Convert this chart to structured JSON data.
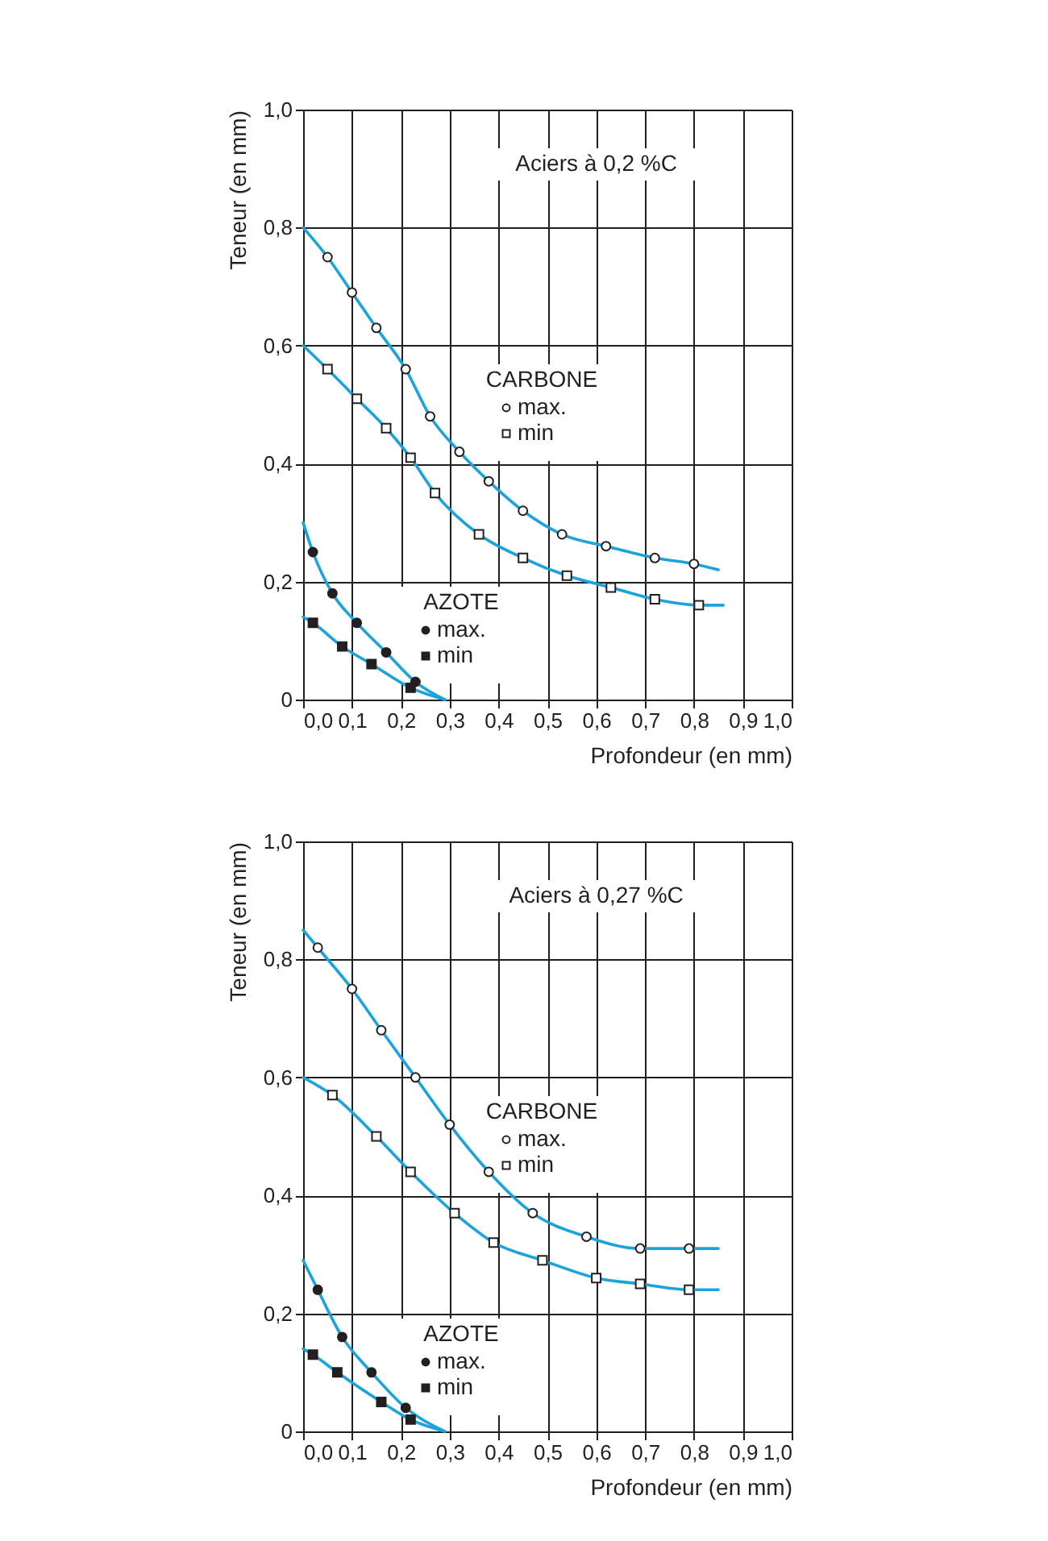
{
  "chart_data": [
    {
      "type": "line",
      "title": "Aciers à 0,2 %C",
      "xlabel": "Profondeur (en mm)",
      "ylabel": "Teneur (en mm)",
      "xlim": [
        0,
        1.0
      ],
      "ylim": [
        0,
        1.0
      ],
      "xticks": [
        {
          "value": 0,
          "label": "0,0"
        },
        {
          "value": 0.1,
          "label": "0,1"
        },
        {
          "value": 0.2,
          "label": "0,2"
        },
        {
          "value": 0.3,
          "label": "0,3"
        },
        {
          "value": 0.4,
          "label": "0,4"
        },
        {
          "value": 0.5,
          "label": "0,5"
        },
        {
          "value": 0.6,
          "label": "0,6"
        },
        {
          "value": 0.7,
          "label": "0,7"
        },
        {
          "value": 0.8,
          "label": "0,8"
        },
        {
          "value": 0.9,
          "label": "0,9"
        },
        {
          "value": 1.0,
          "label": "1,0"
        }
      ],
      "yticks": [
        0,
        {
          "value": 0.2,
          "label": "0,2"
        },
        {
          "value": 0.4,
          "label": "0,4"
        },
        {
          "value": 0.6,
          "label": "0,6"
        },
        {
          "value": 0.8,
          "label": "0,8"
        },
        {
          "value": 1.0,
          "label": "1,0"
        }
      ],
      "grid": true,
      "legend": "bottom left",
      "annotations": [
        "CARBONE",
        "AZOTE"
      ],
      "series": [
        {
          "name": "max.",
          "type": "scatter",
          "marker": "circle",
          "color": "#231f20",
          "x": [
            0.05,
            0.1,
            0.15,
            0.21,
            0.26,
            0.32,
            0.38,
            0.45,
            0.53,
            0.62,
            0.72,
            0.8
          ],
          "values": [
            0.75,
            0.69,
            0.63,
            0.56,
            0.48,
            0.42,
            0.37,
            0.32,
            0.28,
            0.26,
            0.24,
            0.23
          ]
        },
        {
          "name": "min",
          "type": "scatter",
          "marker": "square",
          "color": "#231f20",
          "x": [
            0.05,
            0.11,
            0.17,
            0.22,
            0.27,
            0.36,
            0.45,
            0.54,
            0.63,
            0.72,
            0.81
          ],
          "values": [
            0.56,
            0.51,
            0.46,
            0.41,
            0.35,
            0.28,
            0.24,
            0.21,
            0.19,
            0.17,
            0.16
          ]
        },
        {
          "name": "max.",
          "type": "scatter",
          "marker": "circle",
          "color": "#231f20",
          "x": [
            0.02,
            0.06,
            0.11,
            0.17,
            0.23
          ],
          "values": [
            0.25,
            0.18,
            0.13,
            0.08,
            0.03
          ]
        },
        {
          "name": "min",
          "type": "scatter",
          "marker": "square",
          "color": "#231f20",
          "x": [
            0.02,
            0.08,
            0.14,
            0.22
          ],
          "values": [
            0.13,
            0.09,
            0.06,
            0.02
          ]
        },
        {
          "type": "line",
          "color": "#1aa3dd",
          "x": [
            0,
            0.05,
            0.1,
            0.15,
            0.21,
            0.26,
            0.32,
            0.38,
            0.45,
            0.53,
            0.62,
            0.72,
            0.8,
            0.85
          ],
          "values": [
            0.8,
            0.75,
            0.69,
            0.63,
            0.56,
            0.48,
            0.42,
            0.37,
            0.32,
            0.28,
            0.26,
            0.24,
            0.23,
            0.22
          ]
        },
        {
          "type": "line",
          "color": "#1aa3dd",
          "x": [
            0,
            0.05,
            0.11,
            0.17,
            0.22,
            0.27,
            0.36,
            0.45,
            0.54,
            0.63,
            0.72,
            0.81,
            0.86
          ],
          "values": [
            0.6,
            0.56,
            0.51,
            0.46,
            0.41,
            0.35,
            0.28,
            0.24,
            0.21,
            0.19,
            0.17,
            0.16,
            0.16
          ]
        },
        {
          "type": "line",
          "color": "#1aa3dd",
          "x": [
            0,
            0.02,
            0.06,
            0.11,
            0.17,
            0.23,
            0.29
          ],
          "values": [
            0.3,
            0.25,
            0.18,
            0.13,
            0.08,
            0.03,
            0
          ]
        },
        {
          "type": "line",
          "color": "#1aa3dd",
          "x": [
            0,
            0.02,
            0.08,
            0.14,
            0.22,
            0.29
          ],
          "values": [
            0.14,
            0.13,
            0.09,
            0.06,
            0.02,
            0
          ]
        }
      ]
    },
    {
      "type": "line",
      "title": "Aciers à 0,27 %C",
      "xlabel": "Profondeur (en mm)",
      "ylabel": "Teneur (en mm)",
      "xlim": [
        0,
        1.0
      ],
      "ylim": [
        0,
        1.0
      ],
      "xticks": [
        {
          "value": 0,
          "label": "0,0"
        },
        {
          "value": 0.1,
          "label": "0,1"
        },
        {
          "value": 0.2,
          "label": "0,2"
        },
        {
          "value": 0.3,
          "label": "0,3"
        },
        {
          "value": 0.4,
          "label": "0,4"
        },
        {
          "value": 0.5,
          "label": "0,5"
        },
        {
          "value": 0.6,
          "label": "0,6"
        },
        {
          "value": 0.7,
          "label": "0,7"
        },
        {
          "value": 0.8,
          "label": "0,8"
        },
        {
          "value": 0.9,
          "label": "0,9"
        },
        {
          "value": 1.0,
          "label": "1,0"
        }
      ],
      "yticks": [
        0,
        {
          "value": 0.2,
          "label": "0,2"
        },
        {
          "value": 0.4,
          "label": "0,4"
        },
        {
          "value": 0.6,
          "label": "0,6"
        },
        {
          "value": 0.8,
          "label": "0,8"
        },
        {
          "value": 1.0,
          "label": "1,0"
        }
      ],
      "grid": true,
      "legend": "bottom left",
      "annotations": [
        "CARBONE",
        "AZOTE"
      ],
      "series": [
        {
          "name": "max.",
          "type": "scatter",
          "marker": "circle",
          "color": "#231f20",
          "x": [
            0.03,
            0.1,
            0.16,
            0.23,
            0.3,
            0.38,
            0.47,
            0.58,
            0.69,
            0.79
          ],
          "values": [
            0.82,
            0.75,
            0.68,
            0.6,
            0.52,
            0.44,
            0.37,
            0.33,
            0.31,
            0.31
          ]
        },
        {
          "name": "min",
          "type": "scatter",
          "marker": "square",
          "color": "#231f20",
          "x": [
            0.06,
            0.15,
            0.22,
            0.31,
            0.39,
            0.49,
            0.6,
            0.69,
            0.79
          ],
          "values": [
            0.57,
            0.5,
            0.44,
            0.37,
            0.32,
            0.29,
            0.26,
            0.25,
            0.24
          ]
        },
        {
          "name": "max.",
          "type": "scatter",
          "marker": "circle",
          "color": "#231f20",
          "x": [
            0.03,
            0.08,
            0.14,
            0.21
          ],
          "values": [
            0.24,
            0.16,
            0.1,
            0.04
          ]
        },
        {
          "name": "min",
          "type": "scatter",
          "marker": "square",
          "color": "#231f20",
          "x": [
            0.02,
            0.07,
            0.16,
            0.22
          ],
          "values": [
            0.13,
            0.1,
            0.05,
            0.02
          ]
        },
        {
          "type": "line",
          "color": "#1aa3dd",
          "x": [
            0,
            0.03,
            0.1,
            0.16,
            0.23,
            0.3,
            0.38,
            0.47,
            0.58,
            0.69,
            0.79,
            0.85
          ],
          "values": [
            0.85,
            0.82,
            0.75,
            0.68,
            0.6,
            0.52,
            0.44,
            0.37,
            0.33,
            0.31,
            0.31,
            0.31
          ]
        },
        {
          "type": "line",
          "color": "#1aa3dd",
          "x": [
            0,
            0.06,
            0.15,
            0.22,
            0.31,
            0.39,
            0.49,
            0.6,
            0.69,
            0.79,
            0.85
          ],
          "values": [
            0.6,
            0.57,
            0.5,
            0.44,
            0.37,
            0.32,
            0.29,
            0.26,
            0.25,
            0.24,
            0.24
          ]
        },
        {
          "type": "line",
          "color": "#1aa3dd",
          "x": [
            0,
            0.03,
            0.08,
            0.14,
            0.21,
            0.29
          ],
          "values": [
            0.29,
            0.24,
            0.16,
            0.1,
            0.04,
            0
          ]
        },
        {
          "type": "line",
          "color": "#1aa3dd",
          "x": [
            0,
            0.02,
            0.07,
            0.16,
            0.22,
            0.29
          ],
          "values": [
            0.14,
            0.13,
            0.1,
            0.05,
            0.02,
            0
          ]
        }
      ]
    }
  ]
}
